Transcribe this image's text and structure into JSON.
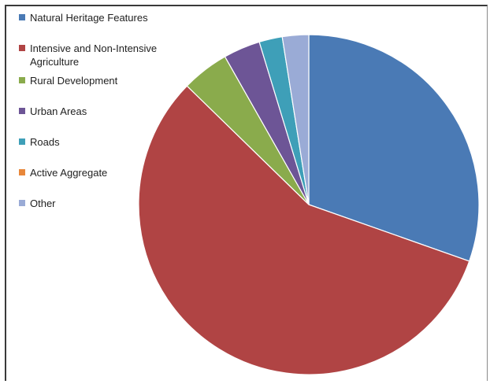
{
  "chart_data": {
    "type": "pie",
    "title": "",
    "legend_position": "top-left",
    "categories": [
      "Natural Heritage Features",
      "Intensive and Non-Intensive Agriculture",
      "Rural Development",
      "Urban Areas",
      "Roads",
      "Active Aggregate",
      "Other"
    ],
    "values": [
      30.4,
      56.9,
      4.5,
      3.5,
      2.2,
      0.0,
      2.5
    ],
    "colors": [
      "#4a7ab5",
      "#b04444",
      "#8aab4c",
      "#6d5596",
      "#3e9fb8",
      "#e8873a",
      "#9aabd6"
    ]
  }
}
